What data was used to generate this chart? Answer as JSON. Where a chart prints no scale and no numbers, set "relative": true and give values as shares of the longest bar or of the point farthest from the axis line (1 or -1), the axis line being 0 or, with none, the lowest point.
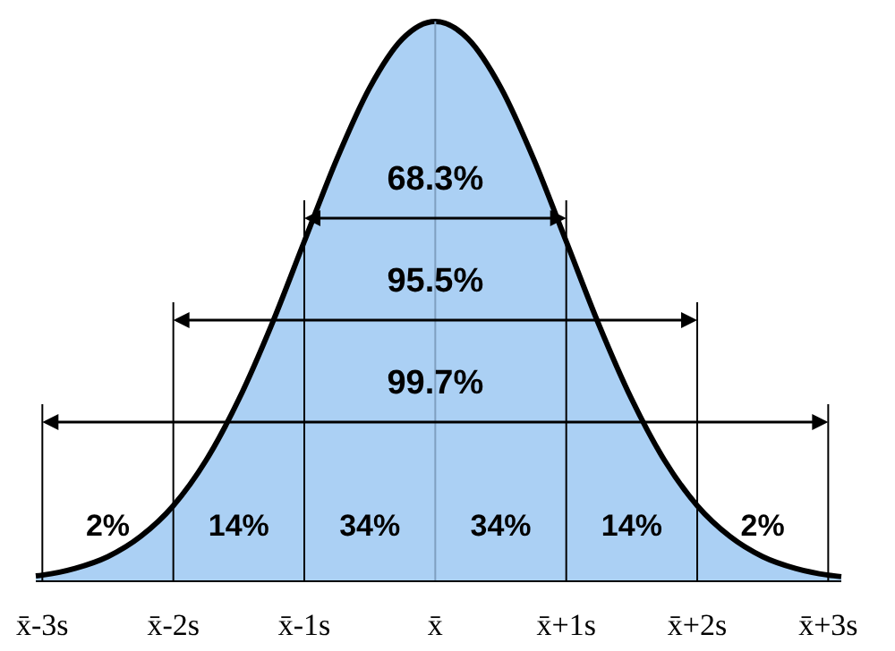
{
  "chart_data": {
    "type": "area",
    "relative": true,
    "color": "#abd0f4",
    "x": [
      -3.05,
      -3,
      -2.75,
      -2.5,
      -2.25,
      -2,
      -1.75,
      -1.5,
      -1.25,
      -1,
      -0.75,
      -0.5,
      -0.25,
      0,
      0.25,
      0.5,
      0.75,
      1,
      1.25,
      1.5,
      1.75,
      2,
      2.25,
      2.5,
      2.75,
      3,
      3.1
    ],
    "values": [
      0.0095,
      0.011,
      0.023,
      0.044,
      0.08,
      0.135,
      0.216,
      0.325,
      0.458,
      0.607,
      0.755,
      0.882,
      0.969,
      1,
      0.969,
      0.882,
      0.755,
      0.607,
      0.458,
      0.325,
      0.216,
      0.135,
      0.08,
      0.044,
      0.023,
      0.011,
      0.0082
    ],
    "xlim": [
      -3.05,
      3.1
    ],
    "xticks": [
      {
        "value": -3,
        "label": "x̄-3s"
      },
      {
        "value": -2,
        "label": "x̄-2s"
      },
      {
        "value": -1,
        "label": "x̄-1s"
      },
      {
        "value": 0,
        "label": "x̄"
      },
      {
        "value": 1,
        "label": "x̄+1s"
      },
      {
        "value": 2,
        "label": "x̄+2s"
      },
      {
        "value": 3,
        "label": "x̄+3s"
      }
    ],
    "ref_lines": [
      {
        "axis": "x",
        "value": -3
      },
      {
        "axis": "x",
        "value": -2
      },
      {
        "axis": "x",
        "value": -1
      },
      {
        "axis": "x",
        "value": 0,
        "color": "#7f9fc0"
      },
      {
        "axis": "x",
        "value": 1
      },
      {
        "axis": "x",
        "value": 2
      },
      {
        "axis": "x",
        "value": 3
      }
    ],
    "annotations": [
      "68.3%",
      "95.5%",
      "99.7%",
      "2%",
      "14%",
      "34%",
      "34%",
      "14%",
      "2%"
    ],
    "grid": false
  }
}
